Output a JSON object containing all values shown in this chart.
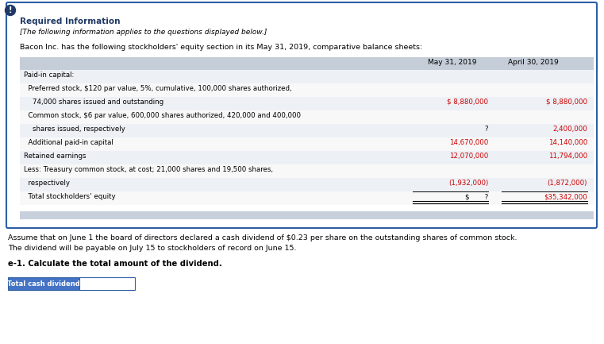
{
  "title": "Required Information",
  "subtitle": "[The following information applies to the questions displayed below.]",
  "intro": "Bacon Inc. has the following stockholders' equity section in its May 31, 2019, comparative balance sheets:",
  "col_headers": [
    "May 31, 2019",
    "April 30, 2019"
  ],
  "rows": [
    {
      "label": "Paid-in capital:",
      "indent": 0,
      "may": "",
      "april": ""
    },
    {
      "label": "  Preferred stock, $120 par value, 5%, cumulative, 100,000 shares authorized,",
      "indent": 0,
      "may": "",
      "april": ""
    },
    {
      "label": "    74,000 shares issued and outstanding",
      "indent": 0,
      "may": "$ 8,880,000",
      "april": "$ 8,880,000"
    },
    {
      "label": "  Common stock, $6 par value, 600,000 shares authorized, 420,000 and 400,000",
      "indent": 0,
      "may": "",
      "april": ""
    },
    {
      "label": "    shares issued, respectively",
      "indent": 0,
      "may": "?",
      "april": "2,400,000"
    },
    {
      "label": "  Additional paid-in capital",
      "indent": 0,
      "may": "14,670,000",
      "april": "14,140,000"
    },
    {
      "label": "Retained earnings",
      "indent": 0,
      "may": "12,070,000",
      "april": "11,794,000"
    },
    {
      "label": "Less: Treasury common stock, at cost; 21,000 shares and 19,500 shares,",
      "indent": 0,
      "may": "",
      "april": ""
    },
    {
      "label": "  respectively",
      "indent": 0,
      "may": "(1,932,000)",
      "april": "(1,872,000)"
    },
    {
      "label": "  Total stockholders' equity",
      "indent": 0,
      "may": "$       ?",
      "april": "$35,342,000"
    }
  ],
  "footer_text1": "Assume that on June 1 the board of directors declared a cash dividend of $0.23 per share on the outstanding shares of common stock.",
  "footer_text2": "The dividend will be payable on July 15 to stockholders of record on June 15.",
  "question_label": "e-1. Calculate the total amount of the dividend.",
  "input_label": "Total cash dividend",
  "bg_color": "#ffffff",
  "table_header_bg": "#c5cdd8",
  "table_row_bg_even": "#edf0f5",
  "table_row_bg_odd": "#f8f8f8",
  "outer_border_color": "#2e5fa3",
  "title_color": "#1f3864",
  "text_color": "#000000",
  "value_color": "#cc0000",
  "icon_bg": "#1f3864",
  "input_label_bg": "#4472c4",
  "input_label_fg": "#ffffff",
  "scrollbar_bg": "#c8d0dc",
  "question_color": "#8b0000",
  "question_label_color": "#000000"
}
